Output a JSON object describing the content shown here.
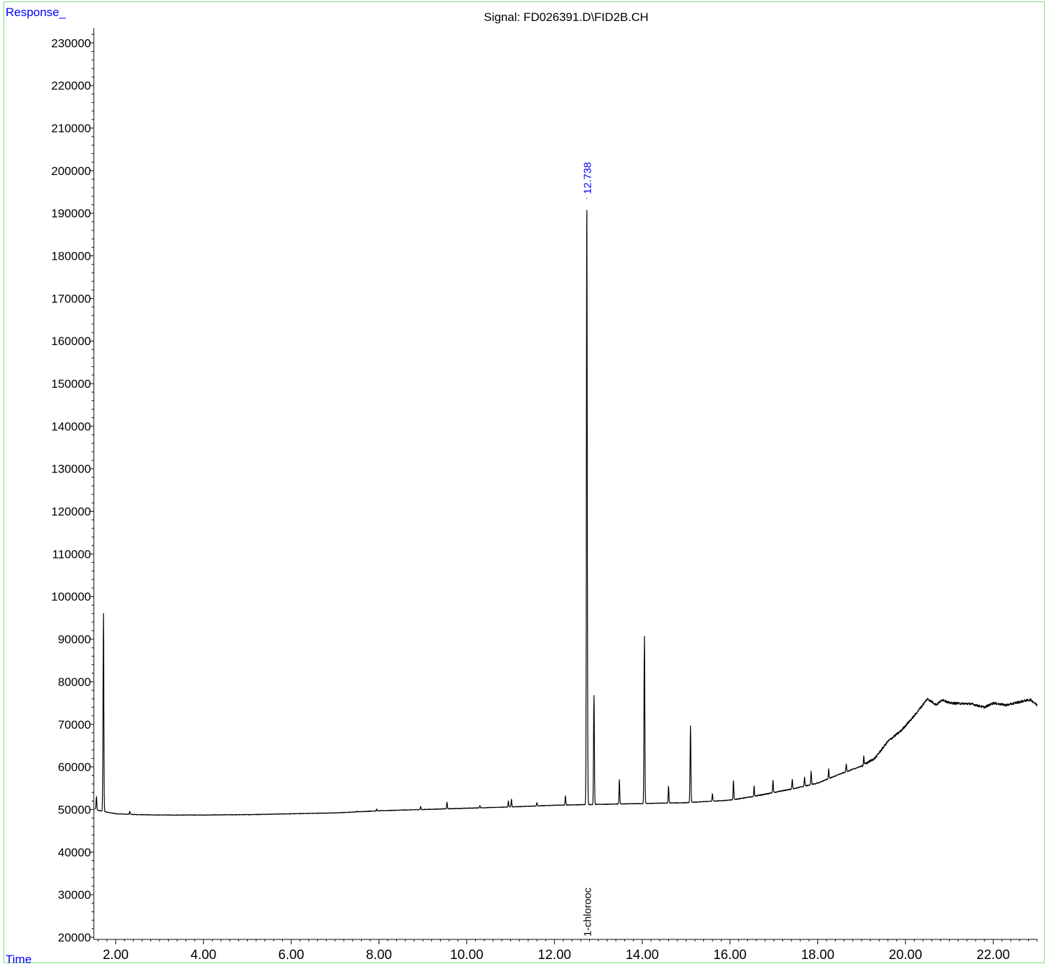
{
  "chart_data": {
    "type": "line",
    "title": "Signal: FD026391.D\\FID2B.CH",
    "ylabel": "Response_",
    "xlabel": "Time",
    "xlim": [
      1.5,
      23.0
    ],
    "ylim": [
      19500,
      233500
    ],
    "x_ticks": [
      2,
      4,
      6,
      8,
      10,
      12,
      14,
      16,
      18,
      20,
      22
    ],
    "x_tick_labels": [
      "2.00",
      "4.00",
      "6.00",
      "8.00",
      "10.00",
      "12.00",
      "14.00",
      "16.00",
      "18.00",
      "20.00",
      "22.00"
    ],
    "y_ticks": [
      20000,
      30000,
      40000,
      50000,
      60000,
      70000,
      80000,
      90000,
      100000,
      110000,
      120000,
      130000,
      140000,
      150000,
      160000,
      170000,
      180000,
      190000,
      200000,
      210000,
      220000,
      230000
    ],
    "y_tick_labels": [
      "20000",
      "30000",
      "40000",
      "50000",
      "60000",
      "70000",
      "80000",
      "90000",
      "100000",
      "110000",
      "120000",
      "130000",
      "140000",
      "150000",
      "160000",
      "170000",
      "180000",
      "190000",
      "200000",
      "210000",
      "220000",
      "230000"
    ],
    "baseline": [
      [
        1.52,
        50200
      ],
      [
        1.6,
        49800
      ],
      [
        1.8,
        49400
      ],
      [
        2.0,
        49000
      ],
      [
        2.5,
        48800
      ],
      [
        3.0,
        48700
      ],
      [
        3.5,
        48700
      ],
      [
        4.0,
        48700
      ],
      [
        5.0,
        48800
      ],
      [
        6.0,
        49000
      ],
      [
        7.0,
        49200
      ],
      [
        8.0,
        49700
      ],
      [
        9.0,
        50000
      ],
      [
        10.0,
        50300
      ],
      [
        11.0,
        50600
      ],
      [
        12.0,
        51000
      ],
      [
        13.0,
        51200
      ],
      [
        14.0,
        51400
      ],
      [
        15.0,
        51600
      ],
      [
        16.0,
        52200
      ],
      [
        16.5,
        53000
      ],
      [
        17.0,
        54000
      ],
      [
        17.5,
        55000
      ],
      [
        18.0,
        56200
      ],
      [
        18.5,
        58300
      ],
      [
        19.0,
        60200
      ],
      [
        19.3,
        62000
      ],
      [
        19.6,
        66000
      ],
      [
        19.9,
        68500
      ],
      [
        20.2,
        72000
      ],
      [
        20.5,
        76000
      ],
      [
        20.7,
        74600
      ],
      [
        20.85,
        75800
      ],
      [
        21.0,
        75000
      ],
      [
        21.5,
        74800
      ],
      [
        21.8,
        74000
      ],
      [
        22.0,
        75000
      ],
      [
        22.3,
        74500
      ],
      [
        22.7,
        75500
      ],
      [
        22.85,
        75800
      ],
      [
        23.0,
        74500
      ]
    ],
    "peaks": [
      {
        "x": 1.56,
        "y": 53000
      },
      {
        "x": 1.72,
        "y": 96000
      },
      {
        "x": 2.32,
        "y": 49600
      },
      {
        "x": 7.5,
        "y": 49600
      },
      {
        "x": 7.95,
        "y": 50100
      },
      {
        "x": 8.95,
        "y": 50700
      },
      {
        "x": 9.55,
        "y": 51700
      },
      {
        "x": 10.3,
        "y": 50900
      },
      {
        "x": 10.95,
        "y": 52000
      },
      {
        "x": 11.02,
        "y": 52400
      },
      {
        "x": 11.6,
        "y": 51600
      },
      {
        "x": 12.25,
        "y": 53200
      },
      {
        "x": 12.738,
        "y": 193500
      },
      {
        "x": 12.9,
        "y": 76700
      },
      {
        "x": 13.48,
        "y": 57000
      },
      {
        "x": 14.05,
        "y": 90600
      },
      {
        "x": 14.6,
        "y": 55400
      },
      {
        "x": 15.1,
        "y": 69600
      },
      {
        "x": 15.6,
        "y": 53700
      },
      {
        "x": 16.08,
        "y": 56700
      },
      {
        "x": 16.55,
        "y": 55500
      },
      {
        "x": 16.98,
        "y": 56800
      },
      {
        "x": 17.42,
        "y": 57100
      },
      {
        "x": 17.7,
        "y": 57600
      },
      {
        "x": 17.85,
        "y": 59000
      },
      {
        "x": 18.25,
        "y": 59500
      },
      {
        "x": 18.65,
        "y": 60600
      },
      {
        "x": 19.05,
        "y": 62500
      }
    ],
    "annotations": {
      "peak_rt_label": {
        "text": "12.738",
        "x": 12.738,
        "y": 193500
      },
      "compound_label": {
        "text": "1-chlorooc",
        "x": 12.738
      }
    },
    "colors": {
      "trace": "#000000",
      "axis": "#000000",
      "label_blue": "#0000ff",
      "frame": "#7fd97f"
    },
    "grid": false
  }
}
